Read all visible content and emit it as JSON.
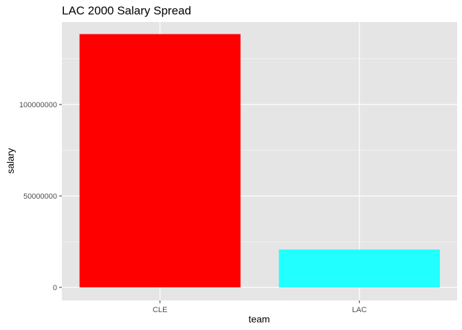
{
  "chart_data": {
    "type": "bar",
    "title": "LAC 2000 Salary Spread",
    "xlabel": "team",
    "ylabel": "salary",
    "categories": [
      "CLE",
      "LAC"
    ],
    "values": [
      138500000,
      20700000
    ],
    "colors": [
      "#ff0000",
      "#22ffff"
    ],
    "ylim": [
      0,
      145000000
    ],
    "yticks": [
      0,
      50000000,
      100000000
    ],
    "ytick_labels": [
      "0",
      "50000000",
      "100000000"
    ],
    "grid": true,
    "legend": "none",
    "panel_background": "#e5e5e5",
    "gridline_color": "#ffffff"
  }
}
